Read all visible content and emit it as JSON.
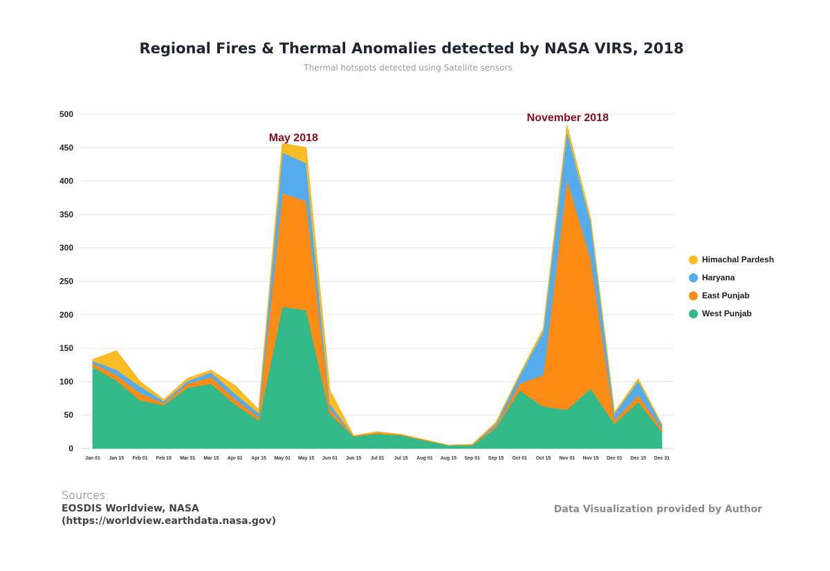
{
  "title": "Regional Fires & Thermal Anomalies detected by NASA VIRS, 2018",
  "subtitle": "Thermal hotspots detected using Satellite sensors",
  "sources": {
    "label": "Sources:",
    "line1": "EOSDIS Worldview, NASA",
    "line2": "(https://worldview.earthdata.nasa.gov)"
  },
  "credit": "Data Visualization provided by Author",
  "colors": {
    "west_punjab": "#34b98a",
    "east_punjab": "#fa8c16",
    "haryana": "#55acec",
    "himachal": "#fbbc24",
    "annotation": "#8b0a1a",
    "grid": "#e3e3e3"
  },
  "legend": [
    {
      "label": "Himachal Pardesh",
      "color": "#fbbc24"
    },
    {
      "label": "Haryana",
      "color": "#55acec"
    },
    {
      "label": "East Punjab",
      "color": "#fa8c16"
    },
    {
      "label": "West Punjab",
      "color": "#34b98a"
    }
  ],
  "chart_data": {
    "type": "area",
    "stacked": true,
    "title": "Regional Fires & Thermal Anomalies detected by NASA VIRS, 2018",
    "subtitle": "Thermal hotspots detected using Satellite sensors",
    "xlabel": "",
    "ylabel": "",
    "ylim": [
      0,
      500
    ],
    "yticks": [
      0,
      50,
      100,
      150,
      200,
      250,
      300,
      350,
      400,
      450,
      500
    ],
    "grid": true,
    "legend_position": "right",
    "categories": [
      "Jan 01",
      "Jan 15",
      "Feb 01",
      "Feb 15",
      "Mar 01",
      "Mar 15",
      "Apr 01",
      "Apr 15",
      "May 01",
      "May 15",
      "Jun 01",
      "Jun 15",
      "Jul 01",
      "Jul 15",
      "Aug 01",
      "Aug 15",
      "Sep 01",
      "Sep 15",
      "Oct 01",
      "Oct 15",
      "Nov 01",
      "Nov 15",
      "Dec 01",
      "Dec 15",
      "Dec 31"
    ],
    "series": [
      {
        "name": "West Punjab",
        "values": [
          122,
          102,
          72,
          65,
          91,
          97,
          66,
          42,
          212,
          207,
          52,
          18,
          22,
          20,
          12,
          5,
          5,
          31,
          87,
          63,
          58,
          90,
          37,
          70,
          25
        ]
      },
      {
        "name": "East Punjab",
        "values": [
          6,
          8,
          11,
          3,
          6,
          10,
          8,
          5,
          170,
          163,
          7,
          1,
          2,
          1,
          1,
          0,
          1,
          3,
          10,
          47,
          345,
          193,
          5,
          10,
          5
        ]
      },
      {
        "name": "Haryana",
        "values": [
          3,
          8,
          10,
          3,
          4,
          7,
          8,
          6,
          61,
          57,
          8,
          0,
          0,
          0,
          0,
          0,
          0,
          3,
          12,
          65,
          72,
          55,
          10,
          21,
          5
        ]
      },
      {
        "name": "Himachal Pardesh",
        "values": [
          2,
          28,
          7,
          2,
          4,
          3,
          12,
          5,
          13,
          23,
          20,
          0,
          1,
          0,
          0,
          0,
          0,
          2,
          2,
          4,
          8,
          5,
          2,
          3,
          1
        ]
      }
    ],
    "annotations": [
      {
        "text": "May 2018",
        "x": "May 01",
        "y": 465
      },
      {
        "text": "November 2018",
        "x": "Nov 01",
        "y": 495
      }
    ]
  }
}
